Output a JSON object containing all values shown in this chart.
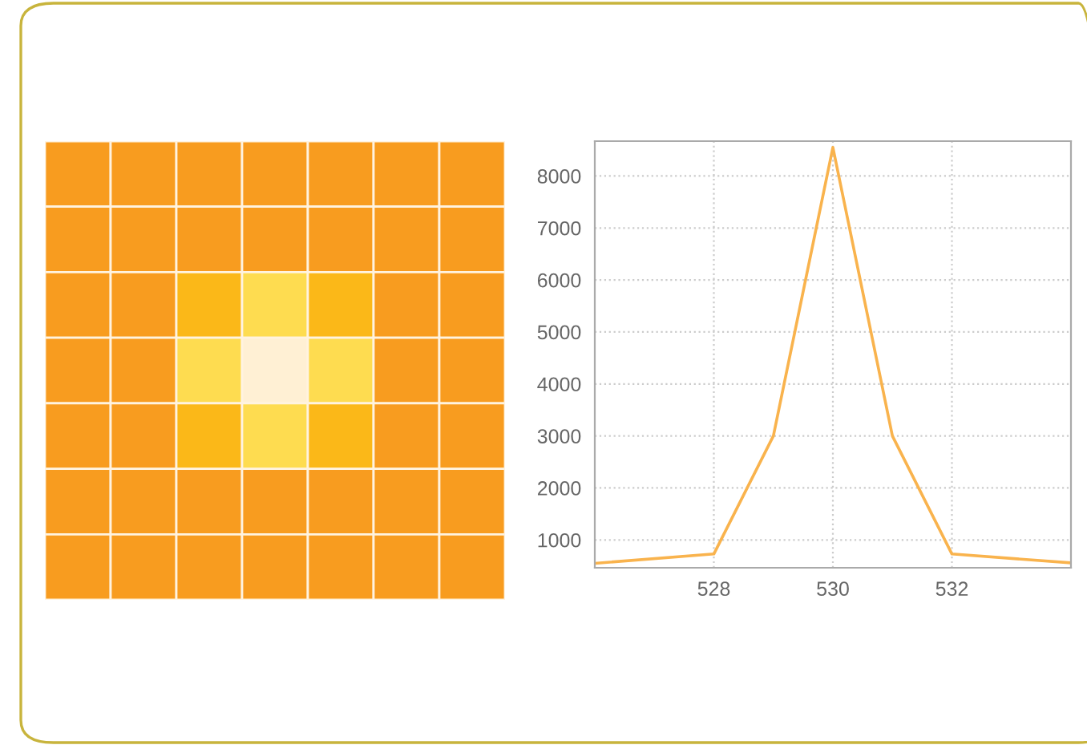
{
  "chart_data": {
    "type": "line",
    "x": [
      526,
      528,
      529,
      530,
      531,
      532,
      534
    ],
    "series": [
      {
        "color": "#f9b34d",
        "values": [
          550,
          730,
          3000,
          8550,
          3000,
          730,
          560
        ]
      }
    ],
    "xlim": [
      526,
      534
    ],
    "xticks": [
      528,
      530,
      532
    ],
    "ylim": [
      465,
      8670
    ],
    "yticks": [
      1000,
      2000,
      3000,
      4000,
      5000,
      6000,
      7000,
      8000
    ],
    "grid": true,
    "marker": "none",
    "line_style": "solid"
  }
}
